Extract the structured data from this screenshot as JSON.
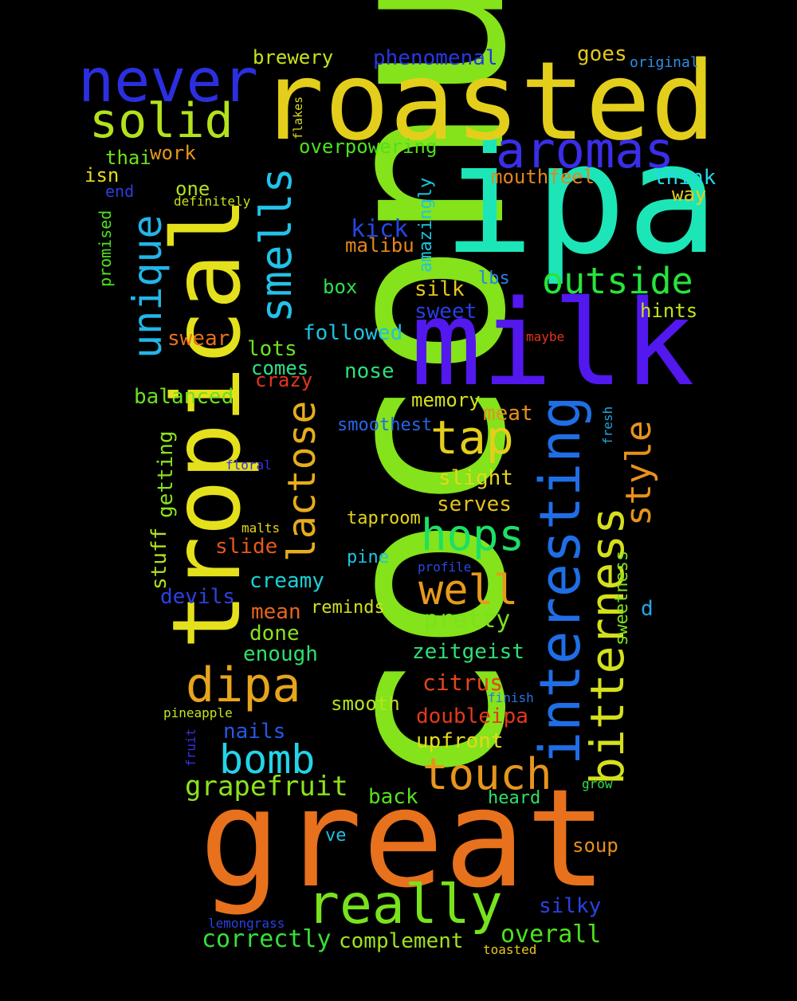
{
  "words": [
    {
      "text": "coconut",
      "color": "#84e31a",
      "orientation": "vertical"
    },
    {
      "text": "great",
      "color": "#e7711c",
      "orientation": "horizontal"
    },
    {
      "text": "ipa",
      "color": "#1ce6b8",
      "orientation": "horizontal"
    },
    {
      "text": "milk",
      "color": "#5218ee",
      "orientation": "horizontal"
    },
    {
      "text": "roasted",
      "color": "#e4ce1c",
      "orientation": "horizontal"
    },
    {
      "text": "tropical",
      "color": "#e4e11c",
      "orientation": "vertical"
    },
    {
      "text": "interesting",
      "color": "#1f6ee6",
      "orientation": "vertical"
    },
    {
      "text": "never",
      "color": "#2b2fe0",
      "orientation": "horizontal"
    },
    {
      "text": "aromas",
      "color": "#3a2ee8",
      "orientation": "horizontal"
    },
    {
      "text": "solid",
      "color": "#b3e21d",
      "orientation": "horizontal"
    },
    {
      "text": "really",
      "color": "#78e31c",
      "orientation": "horizontal"
    },
    {
      "text": "dipa",
      "color": "#e7a51c",
      "orientation": "horizontal"
    },
    {
      "text": "bitterness",
      "color": "#d4e01c",
      "orientation": "vertical"
    },
    {
      "text": "smells",
      "color": "#23c2e8",
      "orientation": "vertical"
    },
    {
      "text": "unique",
      "color": "#23b5e7",
      "orientation": "vertical"
    },
    {
      "text": "lactose",
      "color": "#e6ad1c",
      "orientation": "vertical"
    },
    {
      "text": "tap",
      "color": "#e4ce1c",
      "orientation": "horizontal"
    },
    {
      "text": "hops",
      "color": "#1ce064",
      "orientation": "horizontal"
    },
    {
      "text": "outside",
      "color": "#27e43d",
      "orientation": "horizontal"
    },
    {
      "text": "well",
      "color": "#e79a1c",
      "orientation": "horizontal"
    },
    {
      "text": "bomb",
      "color": "#23d4e8",
      "orientation": "horizontal"
    },
    {
      "text": "touch",
      "color": "#e7951c",
      "orientation": "horizontal"
    },
    {
      "text": "style",
      "color": "#e7921c",
      "orientation": "vertical"
    },
    {
      "text": "grapefruit",
      "color": "#8de21c",
      "orientation": "horizontal"
    },
    {
      "text": "brewery",
      "color": "#c8e21c",
      "orientation": "horizontal"
    },
    {
      "text": "phenomenal",
      "color": "#2637e4",
      "orientation": "horizontal"
    },
    {
      "text": "goes",
      "color": "#e4c81c",
      "orientation": "horizontal"
    },
    {
      "text": "original",
      "color": "#2c8fe6",
      "orientation": "horizontal"
    },
    {
      "text": "flakes",
      "color": "#d6dd1c",
      "orientation": "vertical"
    },
    {
      "text": "overpowering",
      "color": "#4de21c",
      "orientation": "horizontal"
    },
    {
      "text": "thai",
      "color": "#6ee21c",
      "orientation": "horizontal"
    },
    {
      "text": "work",
      "color": "#e7981c",
      "orientation": "horizontal"
    },
    {
      "text": "isn",
      "color": "#e4de1c",
      "orientation": "horizontal"
    },
    {
      "text": "one",
      "color": "#b2e01c",
      "orientation": "horizontal"
    },
    {
      "text": "end",
      "color": "#2a3ee0",
      "orientation": "horizontal"
    },
    {
      "text": "definitely",
      "color": "#c6e21c",
      "orientation": "horizontal"
    },
    {
      "text": "amazingly",
      "color": "#1cc6e0",
      "orientation": "vertical"
    },
    {
      "text": "mouthfeel",
      "color": "#e7841c",
      "orientation": "horizontal"
    },
    {
      "text": "think",
      "color": "#23d8e8",
      "orientation": "horizontal"
    },
    {
      "text": "way",
      "color": "#e4cf1c",
      "orientation": "horizontal"
    },
    {
      "text": "promised",
      "color": "#4ee21c",
      "orientation": "vertical"
    },
    {
      "text": "kick",
      "color": "#2446e4",
      "orientation": "horizontal"
    },
    {
      "text": "malibu",
      "color": "#e7861c",
      "orientation": "horizontal"
    },
    {
      "text": "box",
      "color": "#2ee04c",
      "orientation": "horizontal"
    },
    {
      "text": "silk",
      "color": "#e4c81c",
      "orientation": "horizontal"
    },
    {
      "text": "lbs",
      "color": "#2682e6",
      "orientation": "horizontal"
    },
    {
      "text": "sweet",
      "color": "#2640e4",
      "orientation": "horizontal"
    },
    {
      "text": "hints",
      "color": "#c2e21c",
      "orientation": "horizontal"
    },
    {
      "text": "followed",
      "color": "#1cc3e0",
      "orientation": "horizontal"
    },
    {
      "text": "swear",
      "color": "#e7701c",
      "orientation": "horizontal"
    },
    {
      "text": "maybe",
      "color": "#e6331c",
      "orientation": "horizontal"
    },
    {
      "text": "lots",
      "color": "#6de21c",
      "orientation": "horizontal"
    },
    {
      "text": "comes",
      "color": "#2ee08a",
      "orientation": "horizontal"
    },
    {
      "text": "nose",
      "color": "#2ee07a",
      "orientation": "horizontal"
    },
    {
      "text": "crazy",
      "color": "#e6351c",
      "orientation": "horizontal"
    },
    {
      "text": "balanced",
      "color": "#6ce21c",
      "orientation": "horizontal"
    },
    {
      "text": "memory",
      "color": "#d4e01c",
      "orientation": "horizontal"
    },
    {
      "text": "meat",
      "color": "#e7921c",
      "orientation": "horizontal"
    },
    {
      "text": "fresh",
      "color": "#1ca9e0",
      "orientation": "vertical"
    },
    {
      "text": "smoothest",
      "color": "#2666e6",
      "orientation": "horizontal"
    },
    {
      "text": "getting",
      "color": "#8ae21c",
      "orientation": "vertical"
    },
    {
      "text": "floral",
      "color": "#3a2ee8",
      "orientation": "horizontal"
    },
    {
      "text": "slight",
      "color": "#e4d81c",
      "orientation": "horizontal"
    },
    {
      "text": "serves",
      "color": "#e4c01c",
      "orientation": "horizontal"
    },
    {
      "text": "stuff",
      "color": "#b0e21c",
      "orientation": "vertical"
    },
    {
      "text": "malts",
      "color": "#e4d81c",
      "orientation": "horizontal"
    },
    {
      "text": "taproom",
      "color": "#e4d41c",
      "orientation": "horizontal"
    },
    {
      "text": "slide",
      "color": "#e6591c",
      "orientation": "horizontal"
    },
    {
      "text": "pine",
      "color": "#1cc6e0",
      "orientation": "horizontal"
    },
    {
      "text": "profile",
      "color": "#2a48e4",
      "orientation": "horizontal"
    },
    {
      "text": "sweetness",
      "color": "#7ee21c",
      "orientation": "vertical"
    },
    {
      "text": "creamy",
      "color": "#1cd0d8",
      "orientation": "horizontal"
    },
    {
      "text": "devils",
      "color": "#2a42e4",
      "orientation": "horizontal"
    },
    {
      "text": "mean",
      "color": "#e7651c",
      "orientation": "horizontal"
    },
    {
      "text": "reminds",
      "color": "#d2e01c",
      "orientation": "horizontal"
    },
    {
      "text": "pretty",
      "color": "#7ae21c",
      "orientation": "horizontal"
    },
    {
      "text": "d",
      "color": "#26a6e6",
      "orientation": "horizontal"
    },
    {
      "text": "done",
      "color": "#8be21c",
      "orientation": "horizontal"
    },
    {
      "text": "enough",
      "color": "#2ee06a",
      "orientation": "horizontal"
    },
    {
      "text": "zeitgeist",
      "color": "#2ee074",
      "orientation": "horizontal"
    },
    {
      "text": "citrus",
      "color": "#e6451c",
      "orientation": "horizontal"
    },
    {
      "text": "smooth",
      "color": "#b7e21c",
      "orientation": "horizontal"
    },
    {
      "text": "finish",
      "color": "#2677e6",
      "orientation": "horizontal"
    },
    {
      "text": "pineapple",
      "color": "#c8e21c",
      "orientation": "horizontal"
    },
    {
      "text": "doubleipa",
      "color": "#e6381c",
      "orientation": "horizontal"
    },
    {
      "text": "nails",
      "color": "#2658e6",
      "orientation": "horizontal"
    },
    {
      "text": "fruit",
      "color": "#3a2ee8",
      "orientation": "vertical"
    },
    {
      "text": "upfront",
      "color": "#e4d81c",
      "orientation": "horizontal"
    },
    {
      "text": "back",
      "color": "#56e21c",
      "orientation": "horizontal"
    },
    {
      "text": "heard",
      "color": "#2ee06a",
      "orientation": "horizontal"
    },
    {
      "text": "grow",
      "color": "#2ee04a",
      "orientation": "horizontal"
    },
    {
      "text": "ve",
      "color": "#1cc3e0",
      "orientation": "horizontal"
    },
    {
      "text": "soup",
      "color": "#e7901c",
      "orientation": "horizontal"
    },
    {
      "text": "silky",
      "color": "#2a42e4",
      "orientation": "horizontal"
    },
    {
      "text": "overall",
      "color": "#4ee21c",
      "orientation": "horizontal"
    },
    {
      "text": "correctly",
      "color": "#36e03a",
      "orientation": "horizontal"
    },
    {
      "text": "complement",
      "color": "#9fe21c",
      "orientation": "horizontal"
    },
    {
      "text": "lemongrass",
      "color": "#2a42e4",
      "orientation": "horizontal"
    },
    {
      "text": "toasted",
      "color": "#e4c81c",
      "orientation": "horizontal"
    }
  ]
}
